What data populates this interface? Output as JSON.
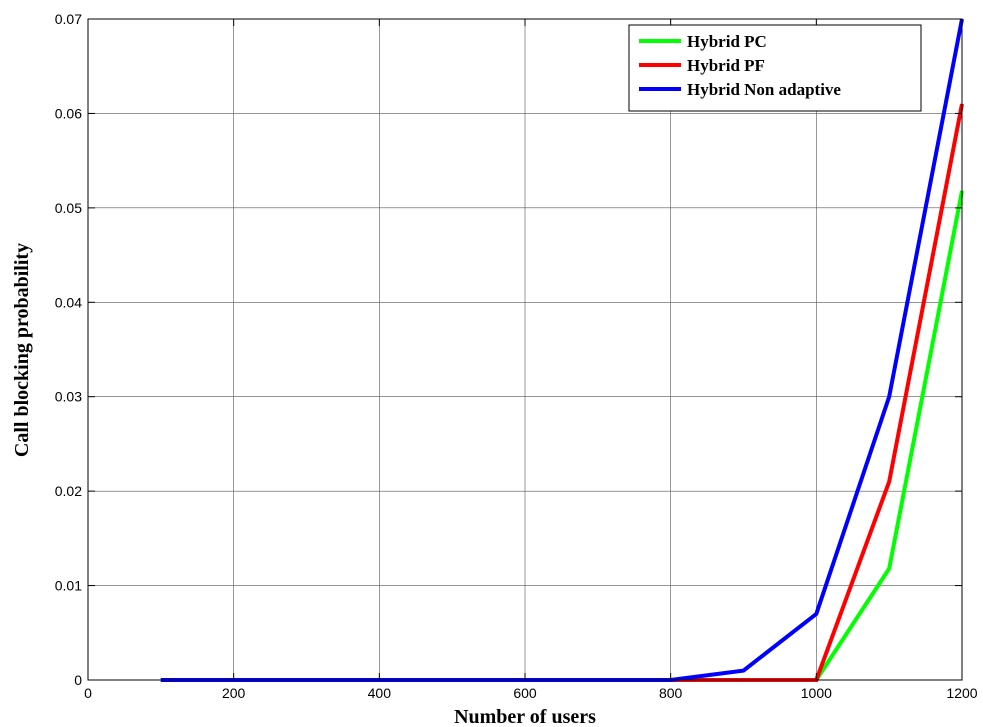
{
  "chart_data": {
    "type": "line",
    "title": "",
    "xlabel": "Number of users",
    "ylabel": "Call blocking probability",
    "xlim": [
      0,
      1200
    ],
    "ylim": [
      0,
      0.07
    ],
    "x_ticks": [
      0,
      200,
      400,
      600,
      800,
      1000,
      1200
    ],
    "y_ticks": [
      0,
      0.01,
      0.02,
      0.03,
      0.04,
      0.05,
      0.06,
      0.07
    ],
    "x_tick_labels": [
      "0",
      "200",
      "400",
      "600",
      "800",
      "1000",
      "1200"
    ],
    "y_tick_labels": [
      "0",
      "0.01",
      "0.02",
      "0.03",
      "0.04",
      "0.05",
      "0.06",
      "0.07"
    ],
    "grid": true,
    "legend_position": "top-right",
    "x": [
      100,
      200,
      300,
      400,
      500,
      600,
      700,
      800,
      900,
      1000,
      1100,
      1200
    ],
    "series": [
      {
        "name": "Hybrid PC",
        "color": "#00ff00",
        "values": [
          0,
          0,
          0,
          0,
          0,
          0,
          0,
          0,
          0,
          0,
          0.0118,
          0.0518
        ]
      },
      {
        "name": "Hybrid PF",
        "color": "#ff0000",
        "values": [
          0,
          0,
          0,
          0,
          0,
          0,
          0,
          0,
          0,
          0,
          0.021,
          0.061
        ]
      },
      {
        "name": "Hybrid Non adaptive",
        "color": "#0000ff",
        "values": [
          0,
          0,
          0,
          0,
          0,
          0,
          0,
          0,
          0.001,
          0.007,
          0.03,
          0.07
        ]
      }
    ]
  }
}
